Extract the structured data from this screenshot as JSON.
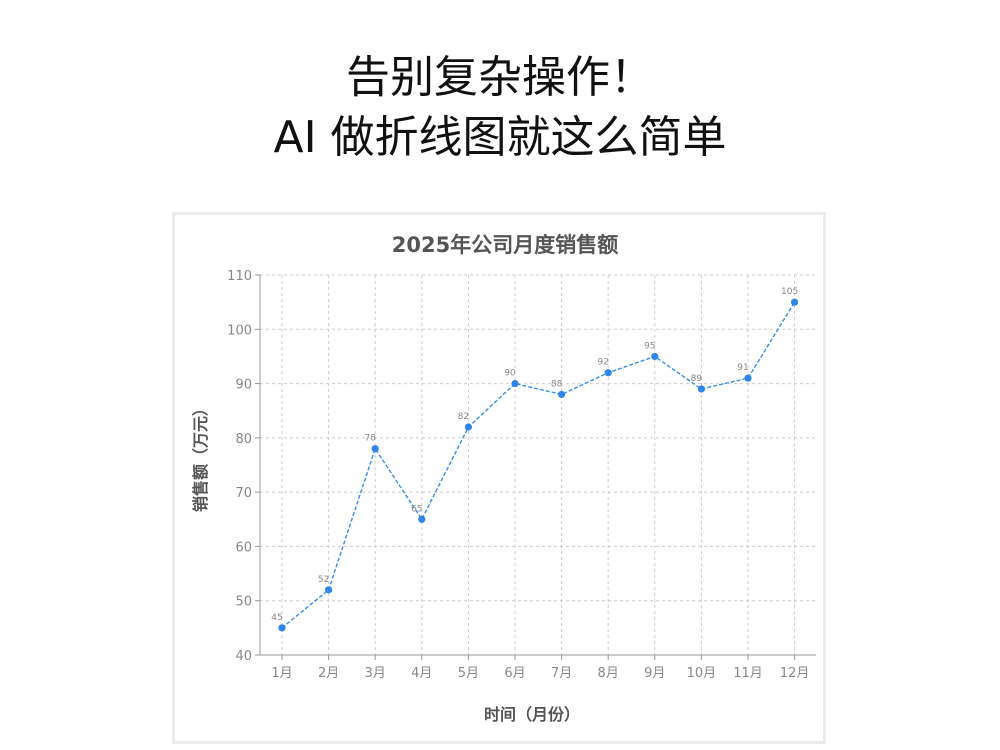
{
  "headline": {
    "line1": "告别复杂操作！",
    "line2": "AI 做折线图就这么简单"
  },
  "chart_data": {
    "type": "line",
    "title": "2025年公司月度销售额",
    "xlabel": "时间（月份）",
    "ylabel": "销售额（万元）",
    "categories": [
      "1月",
      "2月",
      "3月",
      "4月",
      "5月",
      "6月",
      "7月",
      "8月",
      "9月",
      "10月",
      "11月",
      "12月"
    ],
    "series": [
      {
        "values": [
          45,
          52,
          78,
          65,
          82,
          90,
          88,
          92,
          95,
          89,
          91,
          105
        ]
      }
    ],
    "ylim": [
      40,
      110
    ],
    "yticks": [
      40,
      50,
      60,
      70,
      80,
      90,
      100,
      110
    ],
    "grid": true,
    "data_labels": true,
    "line_style": "dashed",
    "marker": "circle",
    "line_color": "#3a8ee6",
    "marker_color": "#2f86e8"
  }
}
